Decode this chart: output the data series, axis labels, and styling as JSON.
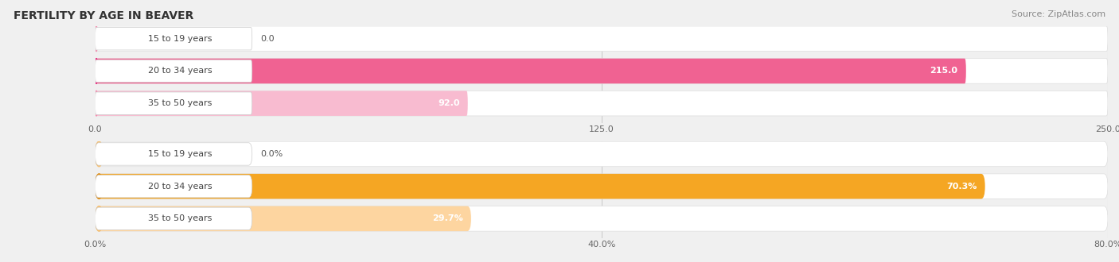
{
  "title": "FERTILITY BY AGE IN BEAVER",
  "source": "Source: ZipAtlas.com",
  "top_chart": {
    "categories": [
      "15 to 19 years",
      "20 to 34 years",
      "35 to 50 years"
    ],
    "values": [
      0.0,
      215.0,
      92.0
    ],
    "xlim": [
      0,
      250.0
    ],
    "xticks": [
      0.0,
      125.0,
      250.0
    ],
    "xtick_labels": [
      "0.0",
      "125.0",
      "250.0"
    ],
    "bar_color_strong": "#f06292",
    "bar_color_light": "#f8bbd0",
    "circle_color_strong": "#e91e7a",
    "circle_color_light": "#f48fb1"
  },
  "bottom_chart": {
    "categories": [
      "15 to 19 years",
      "20 to 34 years",
      "35 to 50 years"
    ],
    "values": [
      0.0,
      70.3,
      29.7
    ],
    "xlim": [
      0,
      80.0
    ],
    "xticks": [
      0.0,
      40.0,
      80.0
    ],
    "xtick_labels": [
      "0.0%",
      "40.0%",
      "80.0%"
    ],
    "bar_color_strong": "#f5a623",
    "bar_color_light": "#fdd5a0",
    "circle_color_strong": "#e08c10",
    "circle_color_light": "#f8c070"
  },
  "bg_color": "#f0f0f0",
  "label_pill_bg": "#ffffff",
  "title_fontsize": 10,
  "source_fontsize": 8,
  "label_fontsize": 8,
  "tick_fontsize": 8,
  "category_fontsize": 8,
  "value_fontsize": 8
}
